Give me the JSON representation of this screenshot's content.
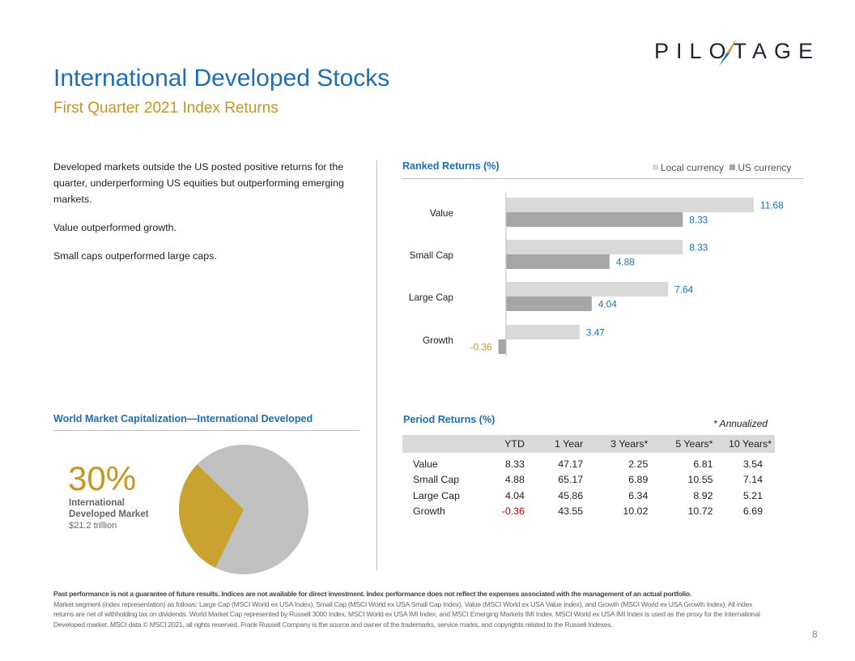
{
  "brand": {
    "logo_text": "PILOTAGE",
    "colors": {
      "primary_blue": "#1f6db5",
      "gold": "#c9941f",
      "light_gray": "#d9d9d9",
      "dark_gray": "#a6a6a6",
      "negative_red": "#c00000"
    }
  },
  "header": {
    "title": "International Developed Stocks",
    "subtitle": "First Quarter 2021 Index Returns"
  },
  "bullets": [
    "Developed  markets outside the US posted positive returns for the quarter, underperforming  US equities but outperforming emerging markets.",
    "Value outperformed  growth.",
    "Small caps outperformed  large caps."
  ],
  "ranked_returns": {
    "title": "Ranked Returns  (%)",
    "legend": [
      "Local currency",
      "US currency"
    ]
  },
  "chart_data": {
    "type": "bar",
    "orientation": "horizontal",
    "title": "Ranked Returns (%)",
    "categories": [
      "Value",
      "Small Cap",
      "Large Cap",
      "Growth"
    ],
    "series": [
      {
        "name": "Local currency",
        "color": "#d9d9d9",
        "values": [
          11.68,
          8.33,
          7.64,
          3.47
        ]
      },
      {
        "name": "US currency",
        "color": "#a6a6a6",
        "values": [
          8.33,
          4.88,
          4.04,
          -0.36
        ]
      }
    ],
    "labels": [
      [
        "11.68",
        "8.33",
        "7.64",
        "3.47"
      ],
      [
        "8.33",
        "4.88",
        "4.04",
        "-0.36"
      ]
    ],
    "xlim": [
      -1,
      13
    ],
    "legend_position": "top-right"
  },
  "world_cap": {
    "title": "World Market Capitalization—International Developed",
    "percent": "30%",
    "label": "International Developed Market",
    "value": "$21.2 trillion",
    "share": 0.3
  },
  "period_returns": {
    "title": "Period Returns  (%)",
    "note": "* Annualized",
    "columns": [
      "",
      "YTD",
      "1 Year",
      "3 Years*",
      "5 Years*",
      "10 Years*"
    ],
    "rows": [
      {
        "label": "Value",
        "values": [
          "8.33",
          "47.17",
          "2.25",
          "6.81",
          "3.54"
        ]
      },
      {
        "label": "Small Cap",
        "values": [
          "4.88",
          "65.17",
          "6.89",
          "10.55",
          "7.14"
        ]
      },
      {
        "label": "Large Cap",
        "values": [
          "4.04",
          "45.86",
          "6.34",
          "8.92",
          "5.21"
        ]
      },
      {
        "label": "Growth",
        "values": [
          "-0.36",
          "43.55",
          "10.02",
          "10.72",
          "6.69"
        ]
      }
    ]
  },
  "disclaimer": {
    "bold": "Past performance is not a guarantee of future results. Indices are not available for direct investment. Index performance does not reflect the expenses associated with the management of an actual portfolio.",
    "body": "Market segment (index representation) as follows: Large Cap (MSCI World ex USA Index), Small Cap (MSCI World ex USA Small Cap Index), Value (MSCI World ex USA Value Index), and Growth (MSCI World ex USA Growth Index). All index returns are net of withholding tax on dividends. World Market Cap represented by Russell 3000 Index, MSCI World ex USA IMI Index, and MSCI Emerging Markets IMI Index. MSCI World ex USA IMI Index is used as the proxy for the International Developed market. MSCI data © MSCI 2021, all rights reserved. Frank Russell Company is the source and owner of the trademarks, service marks, and copyrights related to the Russell Indexes."
  },
  "page_number": "8"
}
